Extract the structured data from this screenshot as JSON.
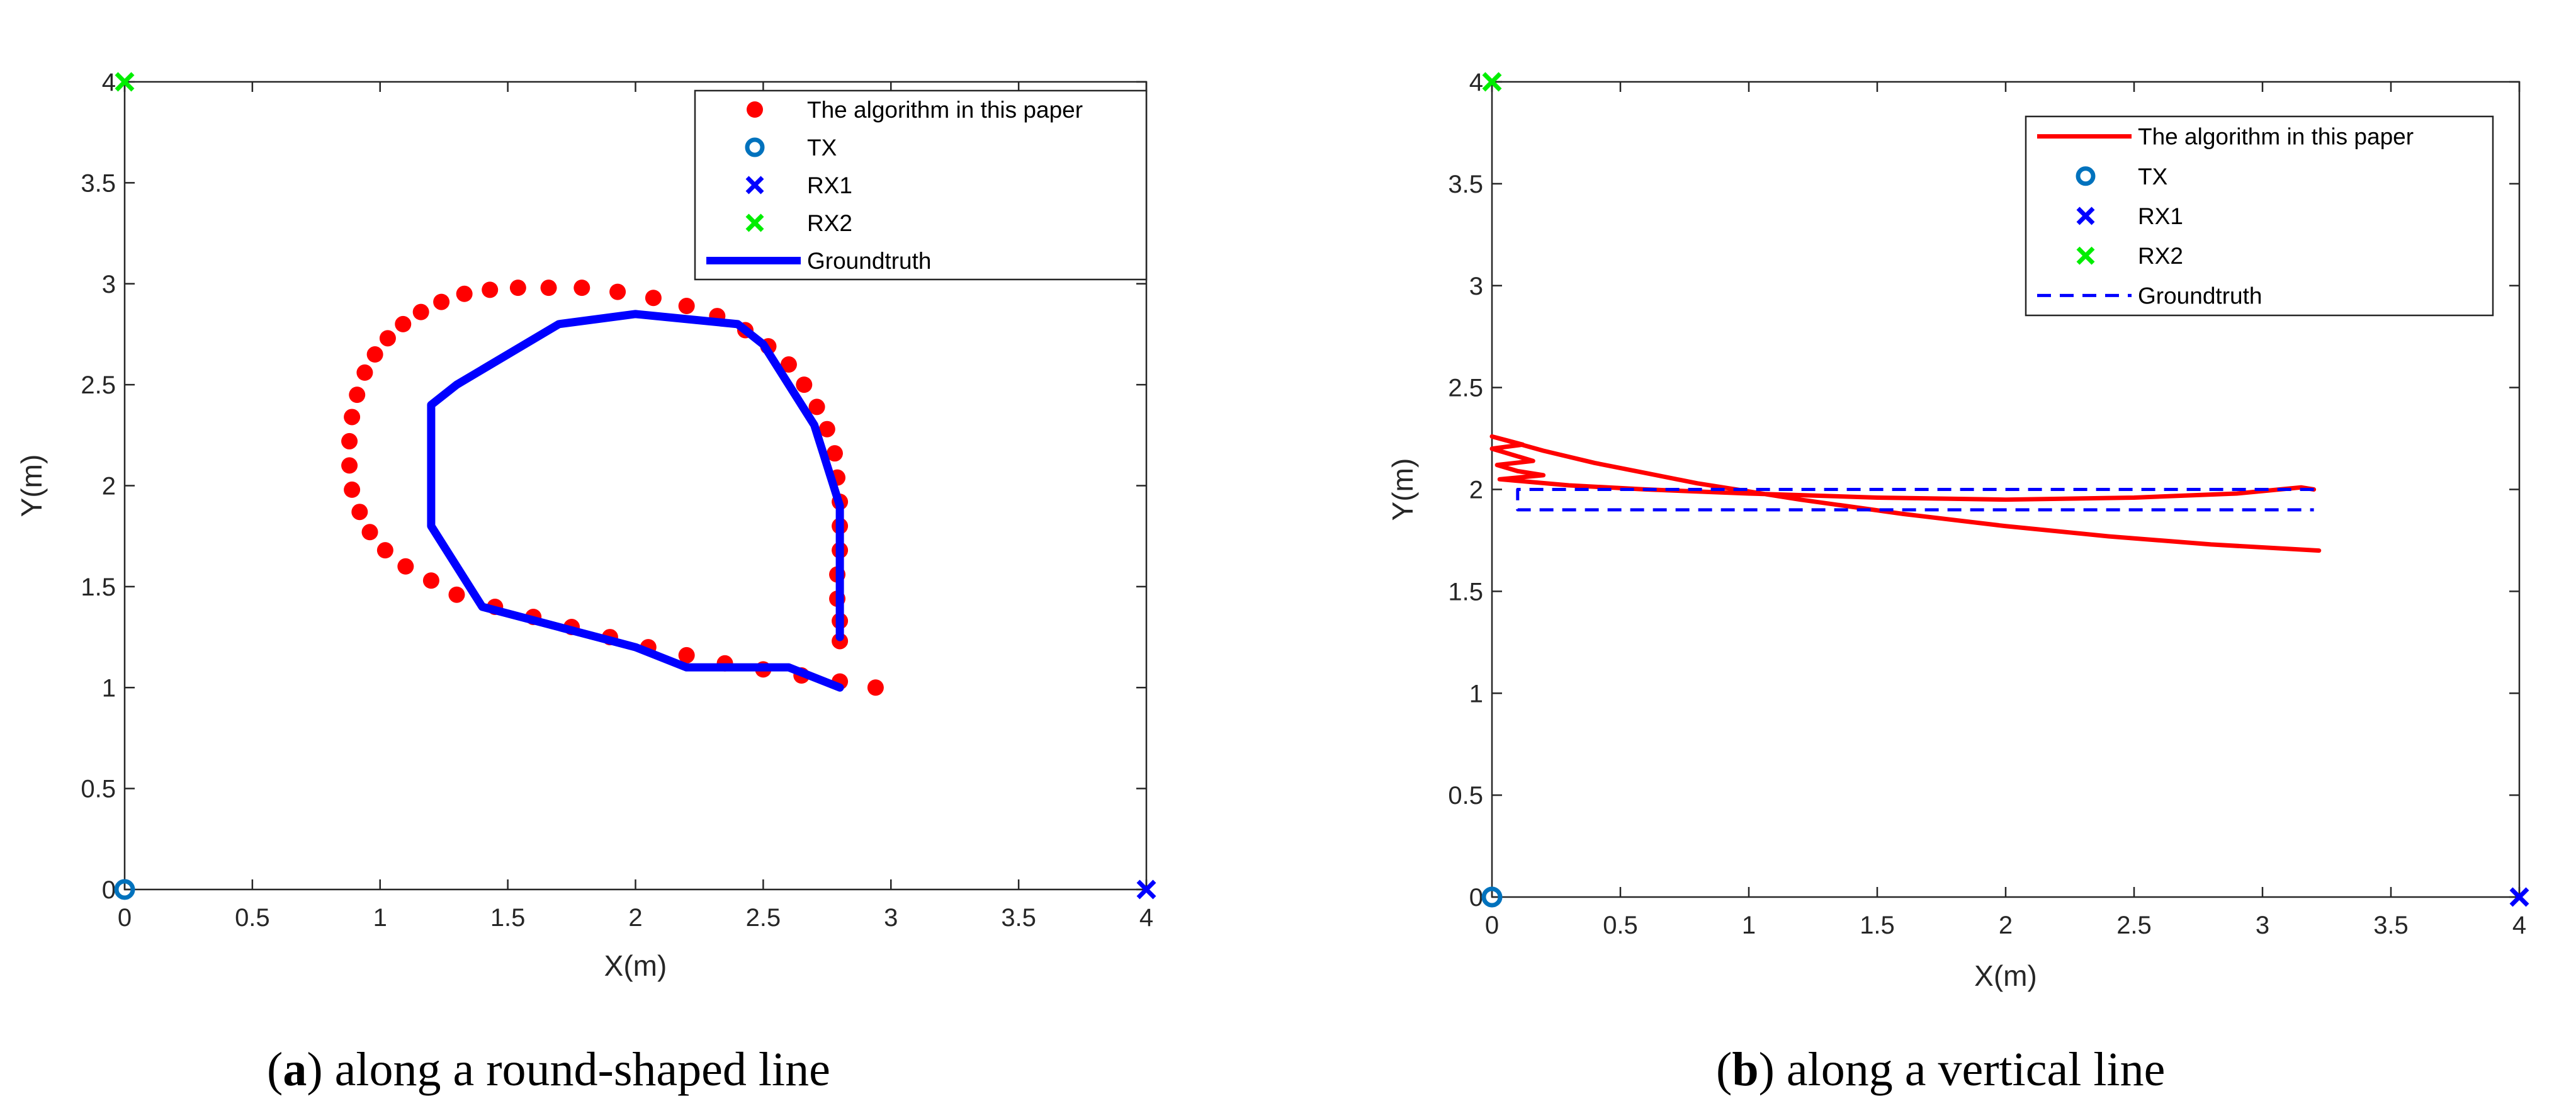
{
  "colors": {
    "algorithm": "#ff0000",
    "groundtruth": "#0000ff",
    "tx": "#0072bd",
    "rx1": "#0000ff",
    "rx2": "#00ee00",
    "axes": "#262626"
  },
  "chart_data": [
    {
      "type": "scatter",
      "title": "",
      "xlabel": "X(m)",
      "ylabel": "Y(m)",
      "xlim": [
        0,
        4
      ],
      "ylim": [
        0,
        4
      ],
      "xticks": [
        0,
        0.5,
        1,
        1.5,
        2,
        2.5,
        3,
        3.5,
        4
      ],
      "yticks": [
        0,
        0.5,
        1,
        1.5,
        2,
        2.5,
        3,
        3.5,
        4
      ],
      "xtick_labels": [
        "0",
        "0.5",
        "1",
        "1.5",
        "2",
        "2.5",
        "3",
        "3.5",
        "4"
      ],
      "ytick_labels": [
        "0",
        "0.5",
        "1",
        "1.5",
        "2",
        "2.5",
        "3",
        "3.5",
        "4"
      ],
      "legend_position": "top-right",
      "caption_letter": "a",
      "caption_text": ") along a round-shaped line",
      "caption_open": "(",
      "series": [
        {
          "name": "The algorithm in this paper",
          "style": "dots",
          "color": "#ff0000",
          "x": [
            2.94,
            2.8,
            2.65,
            2.5,
            2.35,
            2.2,
            2.05,
            1.9,
            1.75,
            1.6,
            1.45,
            1.3,
            1.2,
            1.1,
            1.02,
            0.96,
            0.92,
            0.89,
            0.88,
            0.88,
            0.89,
            0.91,
            0.94,
            0.98,
            1.03,
            1.09,
            1.16,
            1.24,
            1.33,
            1.43,
            1.54,
            1.66,
            1.79,
            1.93,
            2.07,
            2.2,
            2.32,
            2.43,
            2.52,
            2.6,
            2.66,
            2.71,
            2.75,
            2.78,
            2.79,
            2.8,
            2.8,
            2.8,
            2.79,
            2.79,
            2.8,
            2.8
          ],
          "y": [
            1.0,
            1.03,
            1.06,
            1.09,
            1.12,
            1.16,
            1.2,
            1.25,
            1.3,
            1.35,
            1.4,
            1.46,
            1.53,
            1.6,
            1.68,
            1.77,
            1.87,
            1.98,
            2.1,
            2.22,
            2.34,
            2.45,
            2.56,
            2.65,
            2.73,
            2.8,
            2.86,
            2.91,
            2.95,
            2.97,
            2.98,
            2.98,
            2.98,
            2.96,
            2.93,
            2.89,
            2.84,
            2.77,
            2.69,
            2.6,
            2.5,
            2.39,
            2.28,
            2.16,
            2.04,
            1.92,
            1.8,
            1.68,
            1.56,
            1.44,
            1.33,
            1.23
          ]
        },
        {
          "name": "TX",
          "style": "circle",
          "color": "#0072bd",
          "x": [
            0
          ],
          "y": [
            0
          ]
        },
        {
          "name": "RX1",
          "style": "cross",
          "color": "#0000ff",
          "x": [
            4
          ],
          "y": [
            0
          ]
        },
        {
          "name": "RX2",
          "style": "cross",
          "color": "#00ee00",
          "x": [
            0
          ],
          "y": [
            4
          ]
        },
        {
          "name": "Groundtruth",
          "style": "thick-line",
          "color": "#0000ff",
          "x": [
            2.8,
            2.6,
            2.2,
            2.0,
            1.7,
            1.4,
            1.2,
            1.2,
            1.3,
            1.7,
            2.0,
            2.4,
            2.5,
            2.7,
            2.8,
            2.8
          ],
          "y": [
            1.0,
            1.1,
            1.1,
            1.2,
            1.3,
            1.4,
            1.8,
            2.4,
            2.5,
            2.8,
            2.85,
            2.8,
            2.7,
            2.3,
            1.9,
            1.25
          ]
        }
      ]
    },
    {
      "type": "line",
      "title": "",
      "xlabel": "X(m)",
      "ylabel": "Y(m)",
      "xlim": [
        0,
        4
      ],
      "ylim": [
        0,
        4
      ],
      "xticks": [
        0,
        0.5,
        1,
        1.5,
        2,
        2.5,
        3,
        3.5,
        4
      ],
      "yticks": [
        0,
        0.5,
        1,
        1.5,
        2,
        2.5,
        3,
        3.5,
        4
      ],
      "xtick_labels": [
        "0",
        "0.5",
        "1",
        "1.5",
        "2",
        "2.5",
        "3",
        "3.5",
        "4"
      ],
      "ytick_labels": [
        "0",
        "0.5",
        "1",
        "1.5",
        "2",
        "2.5",
        "3",
        "3.5",
        "4"
      ],
      "legend_position": "top-right",
      "caption_letter": "b",
      "caption_text": ") along a vertical line",
      "caption_open": "(",
      "series": [
        {
          "name": "The algorithm in this paper",
          "style": "line",
          "color": "#ff0000",
          "x": [
            3.22,
            2.8,
            2.4,
            2.0,
            1.6,
            1.2,
            1.0,
            0.8,
            0.6,
            0.4,
            0.2,
            0.0,
            0.06,
            0.12,
            0.0,
            0.08,
            0.16,
            0.02,
            0.1,
            0.2,
            0.03,
            0.3,
            0.6,
            1.0,
            1.5,
            2.0,
            2.5,
            2.9,
            3.15,
            3.2
          ],
          "y": [
            1.7,
            1.73,
            1.77,
            1.82,
            1.88,
            1.95,
            1.99,
            2.03,
            2.08,
            2.13,
            2.19,
            2.26,
            2.24,
            2.22,
            2.2,
            2.17,
            2.14,
            2.12,
            2.09,
            2.07,
            2.05,
            2.02,
            2.0,
            1.98,
            1.96,
            1.95,
            1.96,
            1.98,
            2.01,
            2.0
          ]
        },
        {
          "name": "TX",
          "style": "circle",
          "color": "#0072bd",
          "x": [
            0
          ],
          "y": [
            0
          ]
        },
        {
          "name": "RX1",
          "style": "cross",
          "color": "#0000ff",
          "x": [
            4
          ],
          "y": [
            0
          ]
        },
        {
          "name": "RX2",
          "style": "cross",
          "color": "#00ee00",
          "x": [
            0
          ],
          "y": [
            4
          ]
        },
        {
          "name": "Groundtruth",
          "style": "dashed",
          "color": "#0000ff",
          "x": [
            3.2,
            0.1,
            0.1,
            3.2
          ],
          "y": [
            2.0,
            2.0,
            1.9,
            1.9
          ]
        }
      ]
    }
  ]
}
